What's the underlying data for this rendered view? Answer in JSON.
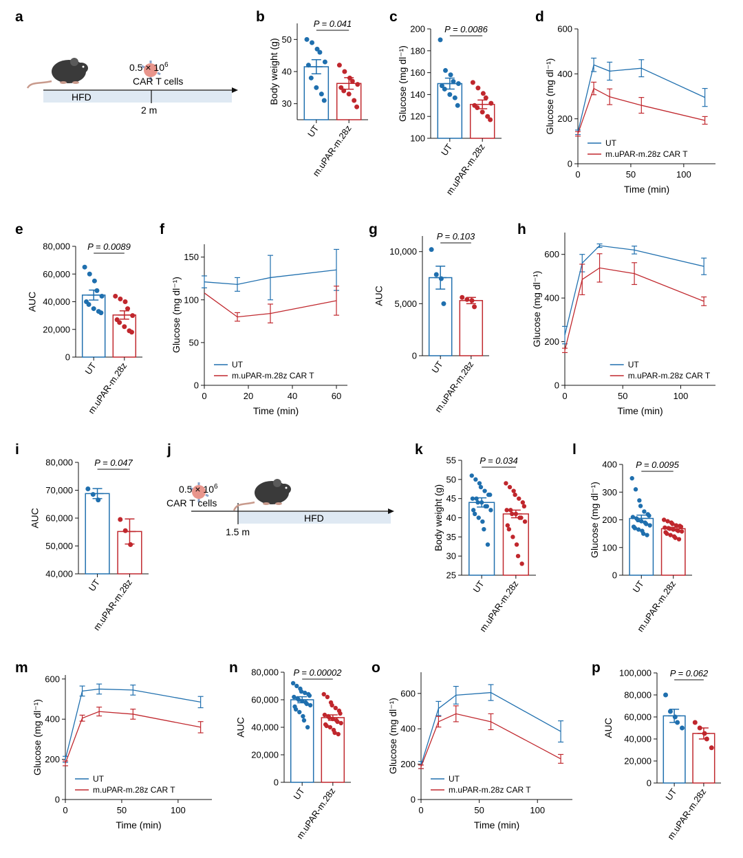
{
  "colors": {
    "ut": "#1f6fae",
    "car": "#c0272d",
    "hfd": "#dfe9f3"
  },
  "schematic_a": {
    "panel": "a",
    "dose": "0.5 × 10",
    "dose_exp": "6",
    "cells": "CAR T cells",
    "diet": "HFD",
    "time": "2 m"
  },
  "schematic_j": {
    "panel": "j",
    "dose": "0.5 × 10",
    "dose_exp": "6",
    "cells": "CAR T cells",
    "diet": "HFD",
    "time": "1.5 m"
  },
  "chart_data": [
    {
      "panel": "b",
      "type": "bar",
      "ylabel": "Body weight (g)",
      "ylim": [
        25,
        55
      ],
      "yticks": [
        30,
        40,
        50
      ],
      "categories": [
        "UT",
        "m.uPAR-m.28z"
      ],
      "values": [
        41.5,
        36.3
      ],
      "sem": [
        2.2,
        1.8
      ],
      "points": [
        [
          50,
          49,
          47,
          46,
          43,
          42,
          38,
          35,
          33,
          31
        ],
        [
          42,
          40,
          38,
          37,
          36,
          35,
          34,
          33,
          31,
          29
        ]
      ],
      "pvalue": "P = 0.041"
    },
    {
      "panel": "c",
      "type": "bar",
      "ylabel": "Glucose (mg dl⁻¹)",
      "ylim": [
        100,
        200
      ],
      "yticks": [
        100,
        120,
        140,
        160,
        180,
        200
      ],
      "categories": [
        "UT",
        "m.uPAR-m.28z"
      ],
      "values": [
        150,
        131
      ],
      "sem": [
        5,
        4
      ],
      "points": [
        [
          190,
          162,
          158,
          152,
          150,
          148,
          145,
          140,
          137,
          130
        ],
        [
          151,
          146,
          141,
          137,
          132,
          130,
          128,
          124,
          120,
          117
        ]
      ],
      "pvalue": "P = 0.0086"
    },
    {
      "panel": "d",
      "type": "line",
      "xlabel": "Time (min)",
      "ylabel": "Glucose (mg dl⁻¹)",
      "xlim": [
        0,
        130
      ],
      "ylim": [
        0,
        600
      ],
      "xticks": [
        0,
        50,
        100
      ],
      "yticks": [
        0,
        200,
        400,
        600
      ],
      "x": [
        0,
        15,
        30,
        60,
        120
      ],
      "series": [
        {
          "name": "UT",
          "values": [
            140,
            440,
            412,
            425,
            295
          ],
          "err": [
            10,
            30,
            40,
            38,
            40
          ]
        },
        {
          "name": "m.uPAR-m.28z CAR T",
          "values": [
            133,
            335,
            298,
            260,
            193
          ],
          "err": [
            10,
            28,
            35,
            35,
            17
          ]
        }
      ],
      "legend": "bottom-left"
    },
    {
      "panel": "e",
      "type": "bar",
      "ylabel": "AUC",
      "ylim": [
        0,
        80000
      ],
      "yticks": [
        0,
        20000,
        40000,
        60000,
        80000
      ],
      "categories": [
        "UT",
        "m.uPAR-m.28z"
      ],
      "values": [
        44800,
        30400
      ],
      "sem": [
        3600,
        3000
      ],
      "points": [
        [
          65000,
          60000,
          55000,
          48000,
          44000,
          40000,
          38000,
          35000,
          33000,
          32000
        ],
        [
          44000,
          42000,
          40000,
          35000,
          30000,
          27000,
          25000,
          22000,
          19000,
          18000
        ]
      ],
      "pvalue": "P = 0.0089"
    },
    {
      "panel": "f",
      "type": "line",
      "xlabel": "Time (min)",
      "ylabel": "Glucose (mg dl⁻¹)",
      "xlim": [
        0,
        65
      ],
      "ylim": [
        0,
        165
      ],
      "xticks": [
        0,
        20,
        40,
        60
      ],
      "yticks": [
        0,
        50,
        100,
        150
      ],
      "x": [
        0,
        15,
        30,
        60
      ],
      "series": [
        {
          "name": "UT",
          "values": [
            121,
            118,
            126,
            135
          ],
          "err": [
            7,
            8,
            26,
            24
          ]
        },
        {
          "name": "m.uPAR-m.28z CAR T",
          "values": [
            108,
            80,
            84,
            99
          ],
          "err": [
            0,
            5,
            11,
            17
          ]
        }
      ],
      "legend": "bottom-left"
    },
    {
      "panel": "g",
      "type": "bar",
      "ylabel": "AUC",
      "ylim": [
        0,
        11500
      ],
      "yticks": [
        0,
        5000,
        10000
      ],
      "categories": [
        "UT",
        "m.uPAR-m.28z"
      ],
      "values": [
        7500,
        5300
      ],
      "sem": [
        1100,
        300
      ],
      "points": [
        [
          10200,
          7800,
          7400,
          5000
        ],
        [
          5600,
          5400,
          5300,
          4700
        ]
      ],
      "pvalue": "P = 0.103"
    },
    {
      "panel": "h",
      "type": "line",
      "xlabel": "Time (min)",
      "ylabel": "Glucose (mg dl⁻¹)",
      "xlim": [
        0,
        130
      ],
      "ylim": [
        0,
        700
      ],
      "xticks": [
        0,
        50,
        100
      ],
      "yticks": [
        0,
        200,
        400,
        600
      ],
      "x": [
        0,
        15,
        30,
        60,
        120
      ],
      "series": [
        {
          "name": "UT",
          "values": [
            230,
            560,
            640,
            620,
            545
          ],
          "err": [
            40,
            40,
            8,
            18,
            38
          ]
        },
        {
          "name": "m.uPAR-m.28z CAR T",
          "values": [
            160,
            485,
            538,
            512,
            385
          ],
          "err": [
            10,
            70,
            65,
            50,
            20
          ]
        }
      ],
      "legend": "bottom-right"
    },
    {
      "panel": "i",
      "type": "bar",
      "ylabel": "AUC",
      "ylim": [
        40000,
        80000
      ],
      "yticks": [
        40000,
        50000,
        60000,
        70000,
        80000
      ],
      "categories": [
        "UT",
        "m.uPAR-m.28z"
      ],
      "values": [
        68800,
        55200
      ],
      "sem": [
        1800,
        4500
      ],
      "points": [
        [
          70500,
          68500,
          66500
        ],
        [
          59500,
          55500,
          50500
        ]
      ],
      "pvalue": "P = 0.047"
    },
    {
      "panel": "k",
      "type": "bar",
      "ylabel": "Body weight (g)",
      "ylim": [
        25,
        55
      ],
      "yticks": [
        25,
        30,
        35,
        40,
        45,
        50,
        55
      ],
      "categories": [
        "UT",
        "m.uPAR-m.28z"
      ],
      "values": [
        44,
        41
      ],
      "sem": [
        1.2,
        1.0
      ],
      "points": [
        [
          51,
          50,
          49,
          48,
          47,
          46,
          46,
          45,
          45,
          44,
          44,
          43,
          43,
          42,
          42,
          41,
          40,
          39,
          37,
          33
        ],
        [
          49,
          48,
          47,
          46,
          45,
          44,
          43,
          42,
          42,
          41,
          41,
          40,
          40,
          39,
          38,
          37,
          35,
          33,
          30,
          28
        ]
      ],
      "pvalue": "P = 0.034"
    },
    {
      "panel": "l",
      "type": "bar",
      "ylabel": "Glucose (mg dl⁻¹)",
      "ylim": [
        0,
        400
      ],
      "yticks": [
        0,
        100,
        200,
        300,
        400
      ],
      "categories": [
        "UT",
        "m.uPAR-m.28z"
      ],
      "values": [
        205,
        168
      ],
      "sem": [
        12,
        5
      ],
      "points": [
        [
          350,
          310,
          270,
          250,
          230,
          220,
          215,
          210,
          205,
          200,
          195,
          190,
          185,
          180,
          175,
          170,
          165,
          160,
          150,
          145
        ],
        [
          200,
          195,
          190,
          185,
          180,
          178,
          175,
          172,
          170,
          168,
          165,
          163,
          160,
          158,
          155,
          150,
          145,
          140,
          135,
          130
        ]
      ],
      "pvalue": "P = 0.0095"
    },
    {
      "panel": "m",
      "type": "line",
      "xlabel": "Time (min)",
      "ylabel": "Glucose (mg dl⁻¹)",
      "xlim": [
        0,
        130
      ],
      "ylim": [
        0,
        620
      ],
      "xticks": [
        0,
        50,
        100
      ],
      "yticks": [
        0,
        200,
        400,
        600
      ],
      "x": [
        0,
        15,
        30,
        60,
        120
      ],
      "series": [
        {
          "name": "UT",
          "values": [
            200,
            540,
            550,
            545,
            485
          ],
          "err": [
            15,
            25,
            25,
            25,
            28
          ]
        },
        {
          "name": "m.uPAR-m.28z CAR T",
          "values": [
            180,
            405,
            438,
            425,
            360
          ],
          "err": [
            12,
            15,
            22,
            25,
            28
          ]
        }
      ],
      "legend": "bottom-left"
    },
    {
      "panel": "n",
      "type": "bar",
      "ylabel": "AUC",
      "ylim": [
        0,
        80000
      ],
      "yticks": [
        0,
        20000,
        40000,
        60000,
        80000
      ],
      "categories": [
        "UT",
        "m.uPAR-m.28z"
      ],
      "values": [
        60000,
        47000
      ],
      "sem": [
        2200,
        2000
      ],
      "points": [
        [
          72000,
          70000,
          68000,
          66000,
          65000,
          64000,
          63000,
          62000,
          61000,
          60000,
          59000,
          58000,
          57000,
          56000,
          55000,
          53000,
          51000,
          48000,
          45000,
          40000
        ],
        [
          64000,
          62000,
          58000,
          56000,
          54000,
          52000,
          50000,
          49000,
          48000,
          47000,
          46000,
          45000,
          44000,
          43000,
          42000,
          41000,
          40000,
          38000,
          36000,
          35000
        ]
      ],
      "pvalue": "P = 0.00002"
    },
    {
      "panel": "o",
      "type": "line",
      "xlabel": "Time (min)",
      "ylabel": "Glucose (mg dl⁻¹)",
      "xlim": [
        0,
        130
      ],
      "ylim": [
        0,
        720
      ],
      "xticks": [
        0,
        50,
        100
      ],
      "yticks": [
        0,
        200,
        400,
        600
      ],
      "x": [
        0,
        15,
        30,
        60,
        120
      ],
      "series": [
        {
          "name": "UT",
          "values": [
            195,
            515,
            590,
            605,
            385
          ],
          "err": [
            20,
            40,
            50,
            45,
            60
          ]
        },
        {
          "name": "m.uPAR-m.28z CAR T",
          "values": [
            185,
            440,
            485,
            440,
            230
          ],
          "err": [
            10,
            30,
            45,
            45,
            25
          ]
        }
      ],
      "legend": "bottom-left"
    },
    {
      "panel": "p",
      "type": "bar",
      "ylabel": "AUC",
      "ylim": [
        0,
        100000
      ],
      "yticks": [
        0,
        20000,
        40000,
        60000,
        80000,
        100000
      ],
      "categories": [
        "UT",
        "m.uPAR-m.28z"
      ],
      "values": [
        61000,
        45000
      ],
      "sem": [
        6000,
        5000
      ],
      "points": [
        [
          80000,
          65000,
          60000,
          55000,
          50000
        ],
        [
          55000,
          50000,
          45000,
          40000,
          32000
        ]
      ],
      "pvalue": "P = 0.062"
    }
  ]
}
